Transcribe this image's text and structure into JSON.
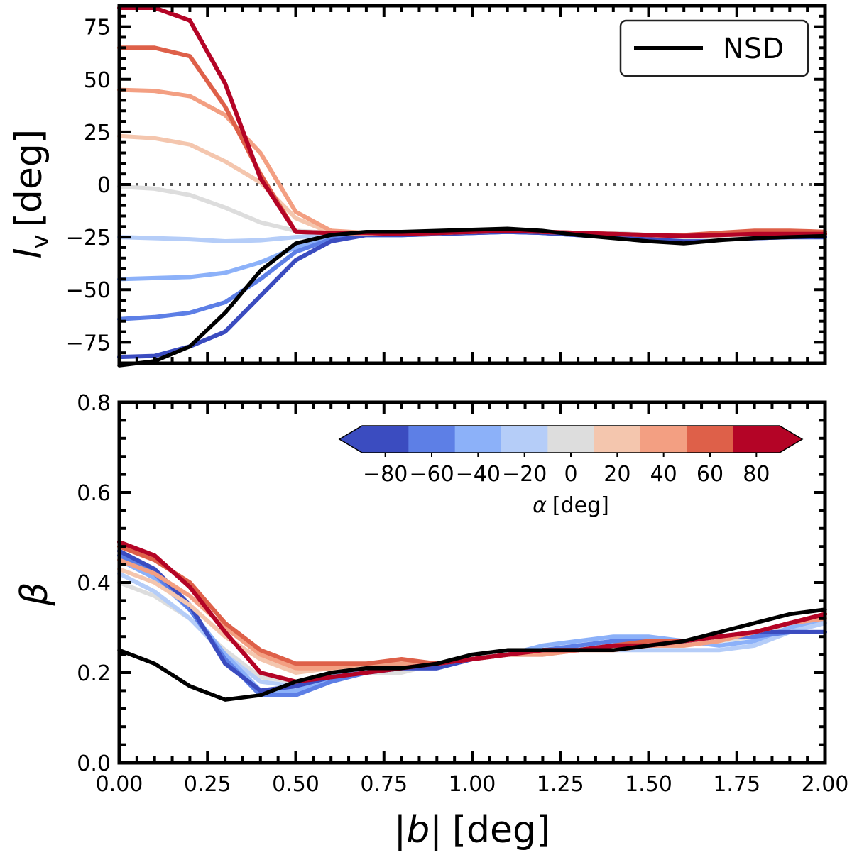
{
  "chart_data": [
    {
      "type": "line",
      "panel": "top",
      "ylabel_main": "l",
      "ylabel_sub": "v",
      "ylabel_unit": "[deg]",
      "xlim": [
        0,
        2
      ],
      "ylim": [
        -85,
        85
      ],
      "yticks": [
        -75,
        -50,
        -25,
        0,
        25,
        50,
        75
      ],
      "ytick_labels": [
        "−75",
        "−50",
        "−25",
        "0",
        "25",
        "50",
        "75"
      ],
      "zero_line": true,
      "legend": {
        "position": "top-right",
        "label": "NSD",
        "color": "#000000"
      },
      "x": [
        0,
        0.1,
        0.2,
        0.3,
        0.4,
        0.5,
        0.6,
        0.7,
        0.8,
        0.9,
        1.0,
        1.1,
        1.2,
        1.3,
        1.4,
        1.5,
        1.6,
        1.7,
        1.8,
        1.9,
        2.0
      ],
      "series": [
        {
          "alpha": -20,
          "color": "#b5cdf8",
          "values": [
            -25,
            -25.5,
            -26,
            -27,
            -26.5,
            -25,
            -24,
            -23.5,
            -23.5,
            -23.5,
            -23,
            -22.5,
            -23,
            -24,
            -25,
            -26,
            -26.5,
            -26,
            -25.5,
            -25,
            -25
          ]
        },
        {
          "alpha": -40,
          "color": "#8cb1f9",
          "values": [
            -45,
            -44.5,
            -44,
            -42,
            -37,
            -30,
            -25,
            -24,
            -24,
            -23.5,
            -23,
            -22.5,
            -23,
            -24,
            -25,
            -26,
            -26.5,
            -26,
            -25.5,
            -25,
            -25
          ]
        },
        {
          "alpha": -60,
          "color": "#5d7fe6",
          "values": [
            -64,
            -63,
            -61,
            -56,
            -45,
            -32,
            -26,
            -24,
            -24,
            -23.5,
            -23,
            -22.5,
            -23,
            -24,
            -25,
            -26,
            -26.5,
            -26,
            -25.5,
            -25,
            -25
          ]
        },
        {
          "alpha": -80,
          "color": "#3b4cc0",
          "values": [
            -82,
            -81.5,
            -77,
            -70,
            -53,
            -36,
            -27,
            -24,
            -24,
            -23.5,
            -23,
            -22.5,
            -23,
            -24,
            -25,
            -26,
            -26.5,
            -26,
            -25.5,
            -25,
            -25
          ]
        },
        {
          "alpha": 0,
          "color": "#dddddd",
          "values": [
            -1,
            -2,
            -5,
            -11,
            -18,
            -22,
            -23,
            -23,
            -23,
            -23,
            -22.5,
            -22,
            -22.5,
            -23,
            -23,
            -24,
            -25,
            -25,
            -24.5,
            -24.5,
            -24
          ]
        },
        {
          "alpha": 20,
          "color": "#f4c6ae",
          "values": [
            23,
            22,
            19,
            11,
            1,
            -16,
            -23,
            -23.5,
            -23.5,
            -23,
            -22.5,
            -22,
            -22.5,
            -23,
            -23.5,
            -24,
            -24.5,
            -24,
            -23.5,
            -23.5,
            -23.5
          ]
        },
        {
          "alpha": 40,
          "color": "#f39f82",
          "values": [
            45,
            44.5,
            42,
            33,
            15,
            -13,
            -22,
            -23,
            -23.5,
            -23,
            -22.5,
            -22,
            -22.5,
            -23,
            -23.5,
            -24,
            -24.5,
            -24,
            -23.5,
            -23.5,
            -23.5
          ]
        },
        {
          "alpha": 60,
          "color": "#de6049",
          "values": [
            65,
            65,
            61,
            37,
            5,
            -22.5,
            -23,
            -23,
            -23.5,
            -23,
            -22.5,
            -22,
            -22.5,
            -23,
            -23.5,
            -24,
            -24,
            -23,
            -22,
            -22,
            -22.5
          ]
        },
        {
          "alpha": 80,
          "color": "#b40426",
          "values": [
            84,
            84,
            78,
            48,
            3,
            -22.5,
            -23,
            -23,
            -23.5,
            -23,
            -22.5,
            -22,
            -22.5,
            -23,
            -23.5,
            -24,
            -24.5,
            -24,
            -23.5,
            -23.5,
            -23.5
          ]
        },
        {
          "name": "NSD",
          "color": "#000000",
          "values": [
            -86,
            -84,
            -77,
            -61,
            -41,
            -28,
            -24,
            -22.5,
            -22.5,
            -22,
            -21.5,
            -21,
            -22,
            -24,
            -25.5,
            -27,
            -28,
            -26.5,
            -25.5,
            -25,
            -24.5
          ]
        }
      ]
    },
    {
      "type": "line",
      "panel": "bottom",
      "ylabel": "β",
      "xlabel_main": "|b|",
      "xlabel_unit": "[deg]",
      "xlim": [
        0,
        2
      ],
      "ylim": [
        0,
        0.8
      ],
      "xticks": [
        0,
        0.25,
        0.5,
        0.75,
        1.0,
        1.25,
        1.5,
        1.75,
        2.0
      ],
      "xtick_labels": [
        "0.00",
        "0.25",
        "0.50",
        "0.75",
        "1.00",
        "1.25",
        "1.50",
        "1.75",
        "2.00"
      ],
      "yticks": [
        0,
        0.2,
        0.4,
        0.6,
        0.8
      ],
      "ytick_labels": [
        "0.0",
        "0.2",
        "0.4",
        "0.6",
        "0.8"
      ],
      "x": [
        0,
        0.1,
        0.2,
        0.3,
        0.4,
        0.5,
        0.6,
        0.7,
        0.8,
        0.9,
        1.0,
        1.1,
        1.2,
        1.3,
        1.4,
        1.5,
        1.6,
        1.7,
        1.8,
        1.9,
        2.0
      ],
      "series": [
        {
          "alpha": 0,
          "color": "#dddddd",
          "values": [
            0.4,
            0.37,
            0.32,
            0.25,
            0.19,
            0.18,
            0.19,
            0.2,
            0.2,
            0.22,
            0.24,
            0.25,
            0.25,
            0.26,
            0.26,
            0.26,
            0.27,
            0.27,
            0.28,
            0.3,
            0.31
          ]
        },
        {
          "alpha": -20,
          "color": "#b5cdf8",
          "values": [
            0.42,
            0.38,
            0.32,
            0.24,
            0.18,
            0.17,
            0.19,
            0.2,
            0.21,
            0.22,
            0.23,
            0.24,
            0.24,
            0.25,
            0.25,
            0.25,
            0.25,
            0.25,
            0.26,
            0.29,
            0.31
          ]
        },
        {
          "alpha": -40,
          "color": "#8cb1f9",
          "values": [
            0.45,
            0.41,
            0.34,
            0.24,
            0.16,
            0.16,
            0.19,
            0.21,
            0.21,
            0.22,
            0.23,
            0.24,
            0.26,
            0.27,
            0.28,
            0.28,
            0.27,
            0.26,
            0.27,
            0.3,
            0.32
          ]
        },
        {
          "alpha": -60,
          "color": "#5d7fe6",
          "values": [
            0.46,
            0.42,
            0.34,
            0.23,
            0.15,
            0.15,
            0.18,
            0.2,
            0.21,
            0.21,
            0.23,
            0.24,
            0.25,
            0.26,
            0.27,
            0.27,
            0.27,
            0.28,
            0.28,
            0.29,
            0.29
          ]
        },
        {
          "alpha": -80,
          "color": "#3b4cc0",
          "values": [
            0.47,
            0.43,
            0.35,
            0.22,
            0.16,
            0.17,
            0.19,
            0.2,
            0.21,
            0.21,
            0.23,
            0.24,
            0.25,
            0.25,
            0.26,
            0.26,
            0.27,
            0.28,
            0.29,
            0.29,
            0.29
          ]
        },
        {
          "alpha": 20,
          "color": "#f4c6ae",
          "values": [
            0.43,
            0.4,
            0.35,
            0.28,
            0.23,
            0.2,
            0.21,
            0.21,
            0.22,
            0.22,
            0.23,
            0.24,
            0.24,
            0.25,
            0.25,
            0.26,
            0.26,
            0.27,
            0.29,
            0.31,
            0.32
          ]
        },
        {
          "alpha": 40,
          "color": "#f39f82",
          "values": [
            0.45,
            0.42,
            0.37,
            0.3,
            0.24,
            0.21,
            0.21,
            0.22,
            0.22,
            0.22,
            0.23,
            0.24,
            0.24,
            0.25,
            0.25,
            0.26,
            0.26,
            0.27,
            0.29,
            0.31,
            0.32
          ]
        },
        {
          "alpha": 60,
          "color": "#de6049",
          "values": [
            0.48,
            0.45,
            0.4,
            0.31,
            0.25,
            0.22,
            0.22,
            0.22,
            0.23,
            0.22,
            0.23,
            0.24,
            0.25,
            0.25,
            0.26,
            0.27,
            0.27,
            0.28,
            0.29,
            0.31,
            0.33
          ]
        },
        {
          "alpha": 80,
          "color": "#b40426",
          "values": [
            0.49,
            0.46,
            0.39,
            0.29,
            0.2,
            0.18,
            0.19,
            0.2,
            0.21,
            0.22,
            0.23,
            0.24,
            0.25,
            0.25,
            0.26,
            0.26,
            0.27,
            0.28,
            0.29,
            0.31,
            0.33
          ]
        },
        {
          "name": "NSD",
          "color": "#000000",
          "values": [
            0.25,
            0.22,
            0.17,
            0.14,
            0.15,
            0.18,
            0.2,
            0.21,
            0.21,
            0.22,
            0.24,
            0.25,
            0.25,
            0.25,
            0.25,
            0.26,
            0.27,
            0.29,
            0.31,
            0.33,
            0.34
          ]
        }
      ],
      "colorbar": {
        "label_main": "α",
        "label_unit": "[deg]",
        "position": "top-right",
        "orientation": "horizontal",
        "extend": "both",
        "range": [
          -90,
          90
        ],
        "colors": [
          "#3b4cc0",
          "#5d7fe6",
          "#8cb1f9",
          "#b5cdf8",
          "#dddddd",
          "#f4c6ae",
          "#f39f82",
          "#de6049",
          "#b40426"
        ],
        "under_color": "#3b4cc0",
        "over_color": "#b40426",
        "ticks": [
          -80,
          -60,
          -40,
          -20,
          0,
          20,
          40,
          60,
          80
        ],
        "tick_labels": [
          "−80",
          "−60",
          "−40",
          "−20",
          "0",
          "20",
          "40",
          "60",
          "80"
        ]
      }
    }
  ]
}
